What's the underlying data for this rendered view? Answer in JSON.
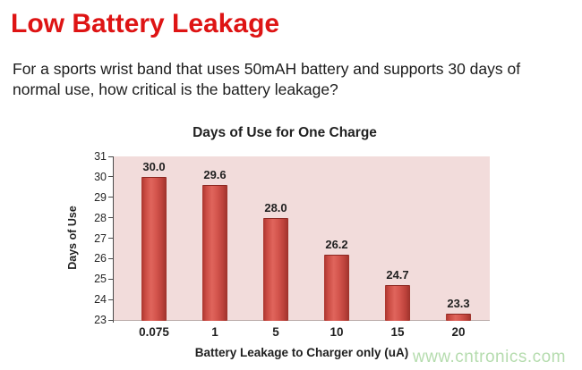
{
  "page": {
    "title": "Low Battery Leakage",
    "body_lines": [
      "For a sports wrist band that uses 50mAH battery and supports 30 days of",
      "normal use, how critical is the battery leakage?"
    ],
    "watermark": "www.cntronics.com"
  },
  "colors": {
    "title_red": "#de1414",
    "plot_background": "#f2dcdb",
    "bar_red": "#c94a42",
    "bar_highlight": "#e0655c",
    "bar_dark": "#9d322b",
    "watermark_green": "#b5dcae"
  },
  "chart_data": {
    "type": "bar",
    "title": "Days of Use for One Charge",
    "xlabel": "Battery Leakage to Charger only (uA)",
    "ylabel": "Days of Use",
    "categories": [
      "0.075",
      "1",
      "5",
      "10",
      "15",
      "20"
    ],
    "values": [
      30.0,
      29.6,
      28.0,
      26.2,
      24.7,
      23.3
    ],
    "data_labels": [
      "30.0",
      "29.6",
      "28.0",
      "26.2",
      "24.7",
      "23.3"
    ],
    "ylim": [
      23,
      31
    ],
    "ytick_step": 1,
    "grid": false,
    "legend": null
  }
}
